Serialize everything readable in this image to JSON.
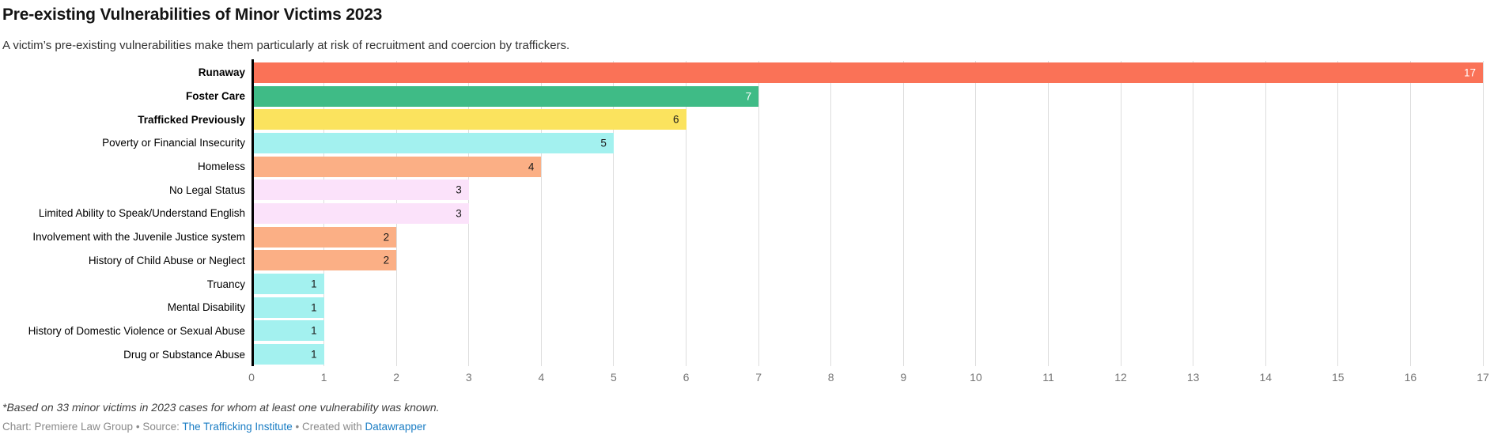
{
  "header": {
    "title": "Pre-existing Vulnerabilities of Minor Victims 2023",
    "subtitle": "A victim’s pre-existing vulnerabilities make them particularly at risk of recruitment and coercion by traffickers."
  },
  "chart_data": {
    "type": "bar",
    "orientation": "horizontal",
    "title": "Pre-existing Vulnerabilities of Minor Victims 2023",
    "subtitle": "A victim’s pre-existing vulnerabilities make them particularly at risk of recruitment and coercion by traffickers.",
    "xlabel": "",
    "ylabel": "",
    "xlim": [
      0,
      17
    ],
    "ticks": [
      0,
      1,
      2,
      3,
      4,
      5,
      6,
      7,
      8,
      9,
      10,
      11,
      12,
      13,
      14,
      15,
      16,
      17
    ],
    "grid": true,
    "categories": [
      "Runaway",
      "Foster Care",
      "Trafficked Previously",
      "Poverty or Financial Insecurity",
      "Homeless",
      "No Legal Status",
      "Limited Ability to Speak/Understand English",
      "Involvement with the Juvenile Justice system",
      "History of Child Abuse or Neglect",
      "Truancy",
      "Mental Disability",
      "History of Domestic Violence or Sexual Abuse",
      "Drug or Substance Abuse"
    ],
    "values": [
      17,
      7,
      6,
      5,
      4,
      3,
      3,
      2,
      2,
      1,
      1,
      1,
      1
    ],
    "series": [
      {
        "label": "Runaway",
        "value": 17,
        "bold": true,
        "color": "#fa7257",
        "value_color": "#ffffff"
      },
      {
        "label": "Foster Care",
        "value": 7,
        "bold": true,
        "color": "#3fbb86",
        "value_color": "#ffffff"
      },
      {
        "label": "Trafficked Previously",
        "value": 6,
        "bold": true,
        "color": "#fbe35e",
        "value_color": "#1a1a1a"
      },
      {
        "label": "Poverty or Financial Insecurity",
        "value": 5,
        "bold": false,
        "color": "#a3f1ef",
        "value_color": "#1a1a1a"
      },
      {
        "label": "Homeless",
        "value": 4,
        "bold": false,
        "color": "#fbaf85",
        "value_color": "#1a1a1a"
      },
      {
        "label": "No Legal Status",
        "value": 3,
        "bold": false,
        "color": "#fbe2fa",
        "value_color": "#1a1a1a"
      },
      {
        "label": "Limited Ability to Speak/Understand English",
        "value": 3,
        "bold": false,
        "color": "#fbe2fa",
        "value_color": "#1a1a1a"
      },
      {
        "label": "Involvement with the Juvenile Justice system",
        "value": 2,
        "bold": false,
        "color": "#fbaf85",
        "value_color": "#1a1a1a"
      },
      {
        "label": "History of Child Abuse or Neglect",
        "value": 2,
        "bold": false,
        "color": "#fbaf85",
        "value_color": "#1a1a1a"
      },
      {
        "label": "Truancy",
        "value": 1,
        "bold": false,
        "color": "#a3f1ef",
        "value_color": "#1a1a1a"
      },
      {
        "label": "Mental Disability",
        "value": 1,
        "bold": false,
        "color": "#a3f1ef",
        "value_color": "#1a1a1a"
      },
      {
        "label": "History of Domestic Violence or Sexual Abuse",
        "value": 1,
        "bold": false,
        "color": "#a3f1ef",
        "value_color": "#1a1a1a"
      },
      {
        "label": "Drug or Substance Abuse",
        "value": 1,
        "bold": false,
        "color": "#a3f1ef",
        "value_color": "#1a1a1a"
      }
    ],
    "colors": {
      "gridline": "#dddddd",
      "axis_line": "#000000",
      "tick_label": "#767676"
    },
    "legend": null
  },
  "footer": {
    "footnote": "*Based on 33 minor victims in 2023 cases for whom at least one vulnerability was known.",
    "byline": {
      "chart_label": "Chart: Premiere Law Group",
      "separator1": "•",
      "source_label": "Source:",
      "source_link": "The Trafficking Institute",
      "separator2": "•",
      "created_label": "Created with",
      "created_link": "Datawrapper",
      "link_color": "#1a7dc4"
    }
  }
}
